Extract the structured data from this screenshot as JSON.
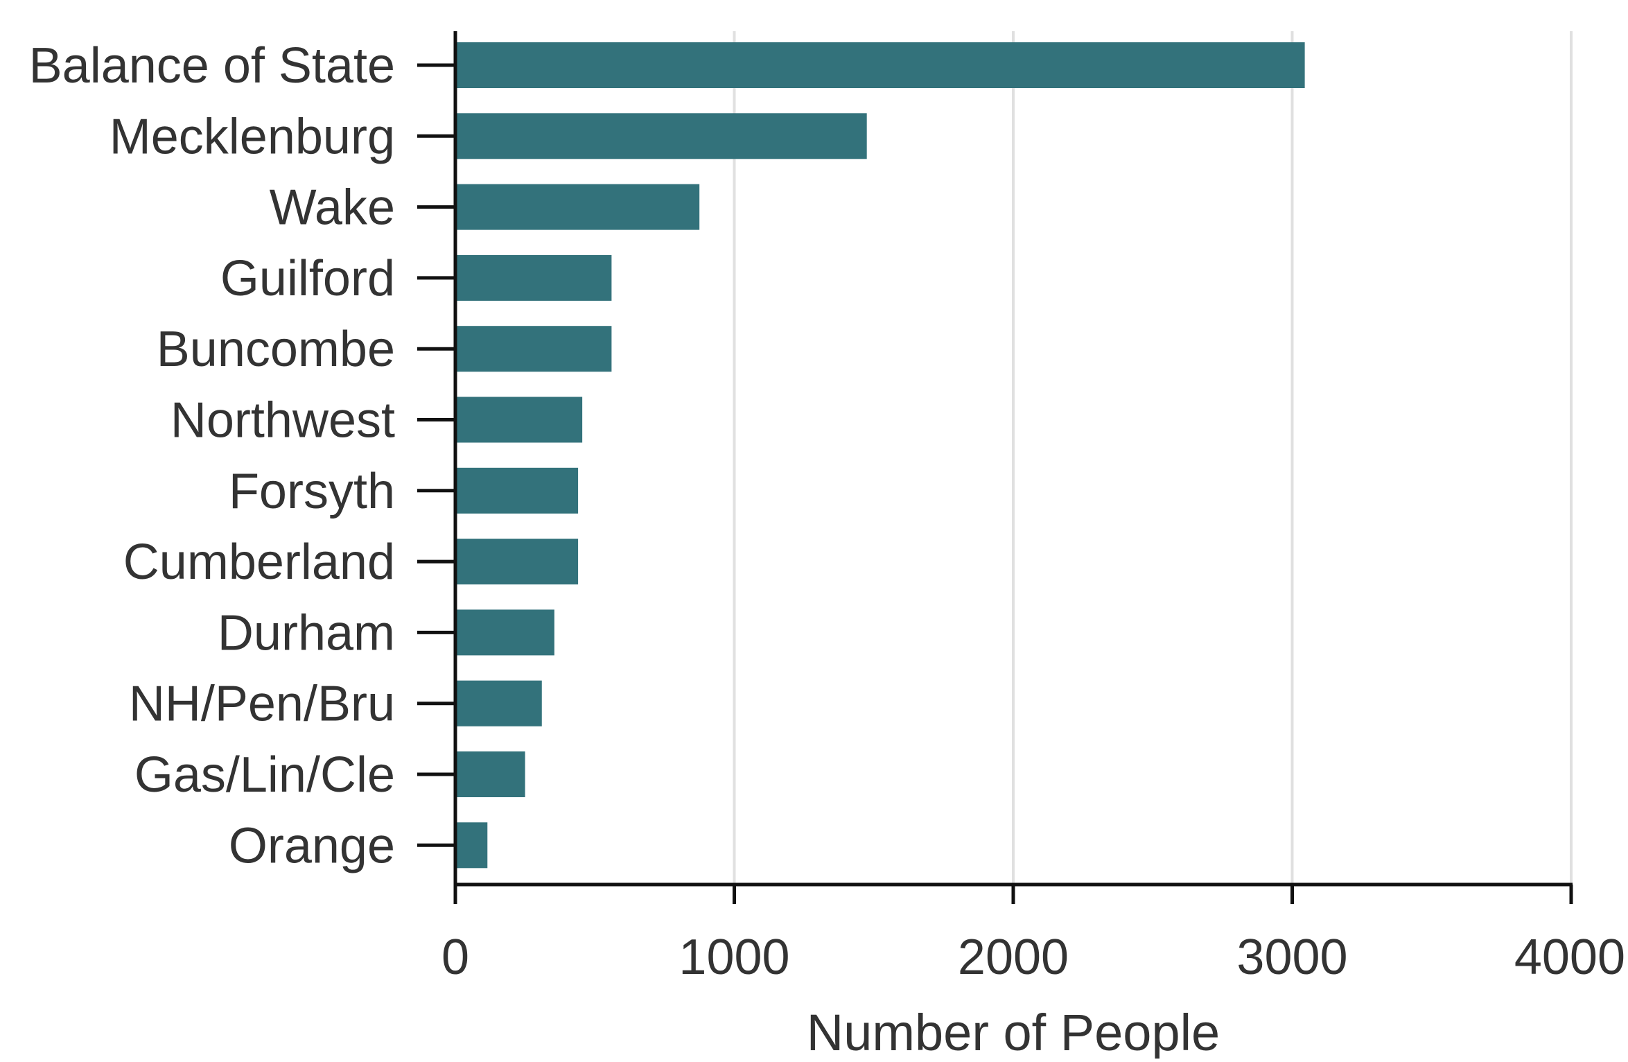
{
  "chart_data": {
    "type": "bar",
    "orientation": "horizontal",
    "categories": [
      "Balance of State",
      "Mecklenburg",
      "Wake",
      "Guilford",
      "Buncombe",
      "Northwest",
      "Forsyth",
      "Cumberland",
      "Durham",
      "NH/Pen/Bru",
      "Gas/Lin/Cle",
      "Orange"
    ],
    "values": [
      3045,
      1475,
      875,
      560,
      560,
      455,
      440,
      440,
      355,
      310,
      250,
      115
    ],
    "title": "",
    "xlabel": "Number of People",
    "ylabel": "",
    "xlim": [
      0,
      4000
    ],
    "xticks": [
      "0",
      "1000",
      "2000",
      "3000",
      "4000"
    ],
    "grid": "vertical",
    "legend": "none",
    "colors": {
      "bar": "#33727b",
      "grid": "#e0e0e0",
      "axis": "#111111",
      "text": "#333333"
    }
  }
}
